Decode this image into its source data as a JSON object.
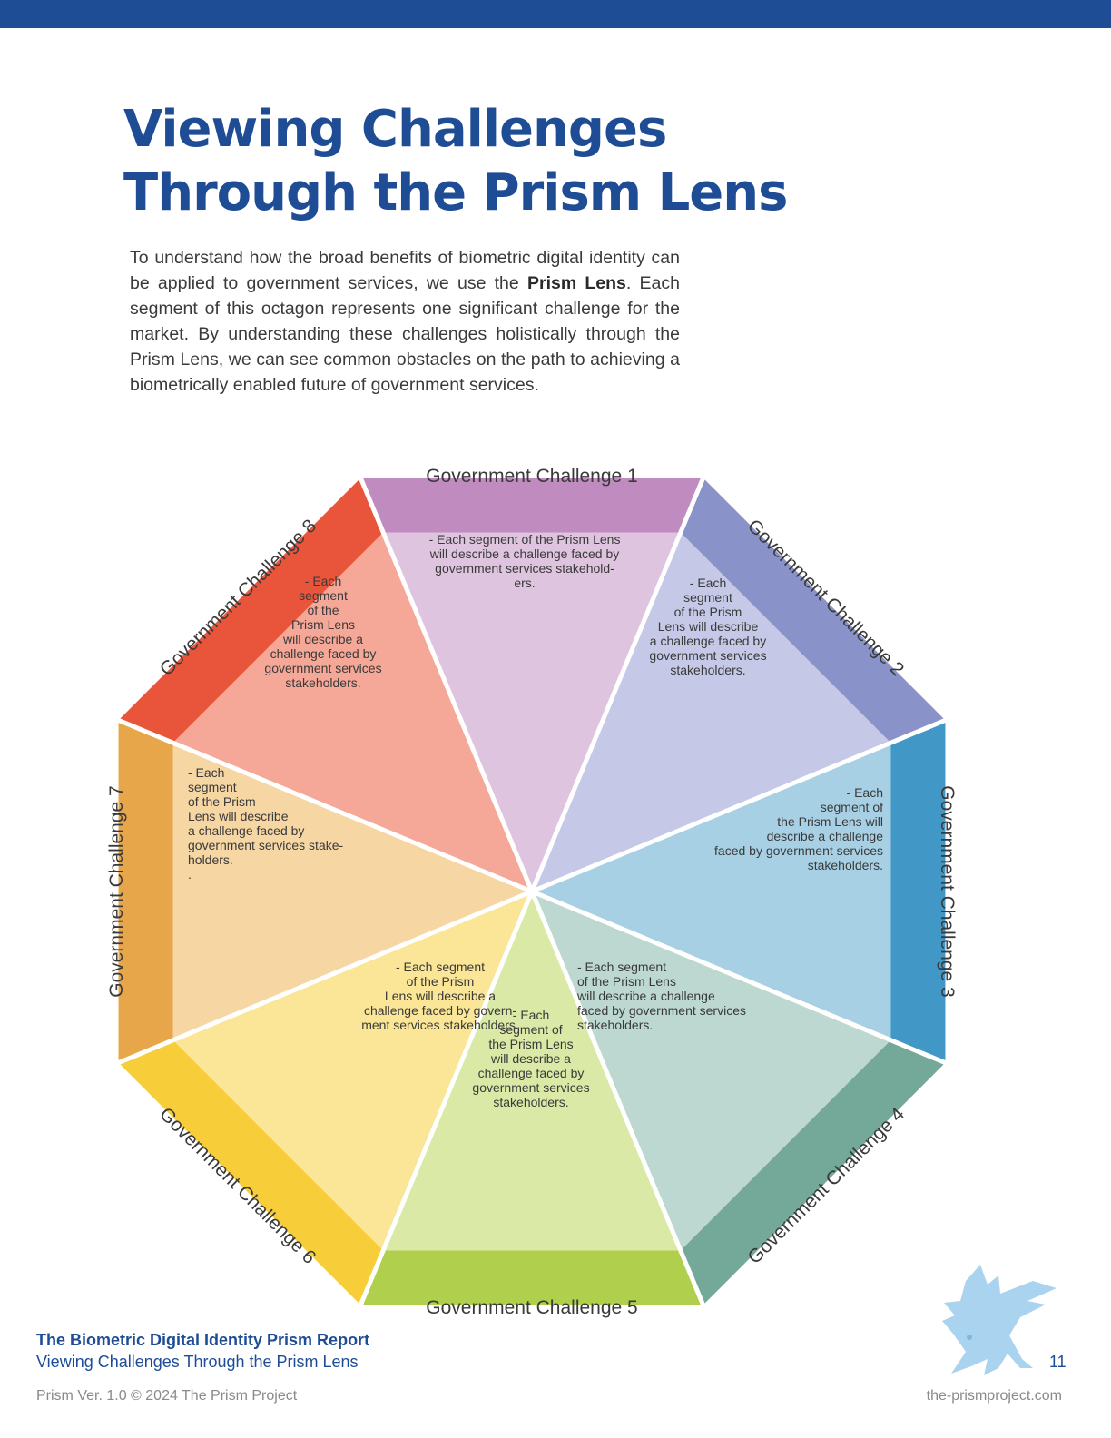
{
  "header": {
    "title_line1": "Viewing Challenges",
    "title_line2": "Through the Prism Lens"
  },
  "intro": {
    "part1": "To understand how the broad benefits of biometric digital identity can be applied to government services, we use the ",
    "bold": "Prism Lens",
    "part2": ". Each segment of this octagon represents one significant challenge for the market. By understanding these challenges holistically through the Prism Lens, we can see common obstacles on the path to achieving a biometrically enabled future of government services."
  },
  "segments": [
    {
      "label": "Government Challenge 1",
      "lines": [
        "- Each segment of the Prism Lens",
        "will describe a challenge faced by",
        "government services stakehold-",
        "ers."
      ],
      "outer": "#c08bbf",
      "inner": "#dfc4df"
    },
    {
      "label": "Government Challenge 2",
      "lines": [
        "- Each",
        "segment",
        "of the Prism",
        "Lens will describe",
        "a challenge faced by",
        "government services",
        "stakeholders."
      ],
      "outer": "#8a93c9",
      "inner": "#c5c9e7"
    },
    {
      "label": "Government Challenge 3",
      "lines": [
        "- Each",
        "segment of",
        "the Prism Lens will",
        "describe a challenge",
        "faced by government services",
        "stakeholders."
      ],
      "outer": "#4197c6",
      "inner": "#a8d0e4"
    },
    {
      "label": "Government Challenge 4",
      "lines": [
        "- Each segment",
        "of the Prism Lens",
        "will describe a challenge",
        "faced by government services",
        "stakeholders."
      ],
      "outer": "#74a99a",
      "inner": "#bcd8d0"
    },
    {
      "label": "Government Challenge 5",
      "lines": [
        "-  Each",
        "segment of",
        "the Prism Lens",
        "will describe a",
        "challenge faced by",
        "government services",
        "stakeholders."
      ],
      "outer": "#b0cf4c",
      "inner": "#dbe9a6"
    },
    {
      "label": "Government Challenge 6",
      "lines": [
        "- Each segment",
        "of the Prism",
        "Lens will describe a",
        "challenge faced by govern-",
        "ment services stakeholders."
      ],
      "outer": "#f8cd3a",
      "inner": "#fbe697"
    },
    {
      "label": "Government Challenge 7",
      "lines": [
        "- Each",
        "segment",
        "of the Prism",
        "Lens will describe",
        "a challenge faced by",
        "government services stake-",
        "holders.",
        "."
      ],
      "outer": "#e8a64b",
      "inner": "#f6d6a3"
    },
    {
      "label": "Government Challenge 8",
      "lines": [
        "- Each",
        "segment",
        "of the",
        "Prism Lens",
        "will describe a",
        "challenge faced by",
        "government services",
        "stakeholders."
      ],
      "outer": "#e9553a",
      "inner": "#f5a897"
    }
  ],
  "footer": {
    "report_title": "The Biometric Digital Identity Prism Report",
    "section": "Viewing Challenges Through the Prism Lens",
    "version": "Prism Ver. 1.0 © 2024 The Prism Project",
    "url": "the-prismproject.com",
    "page": "11"
  },
  "colors": {
    "brand": "#1e4d96",
    "logo": "#a9d3ee"
  }
}
